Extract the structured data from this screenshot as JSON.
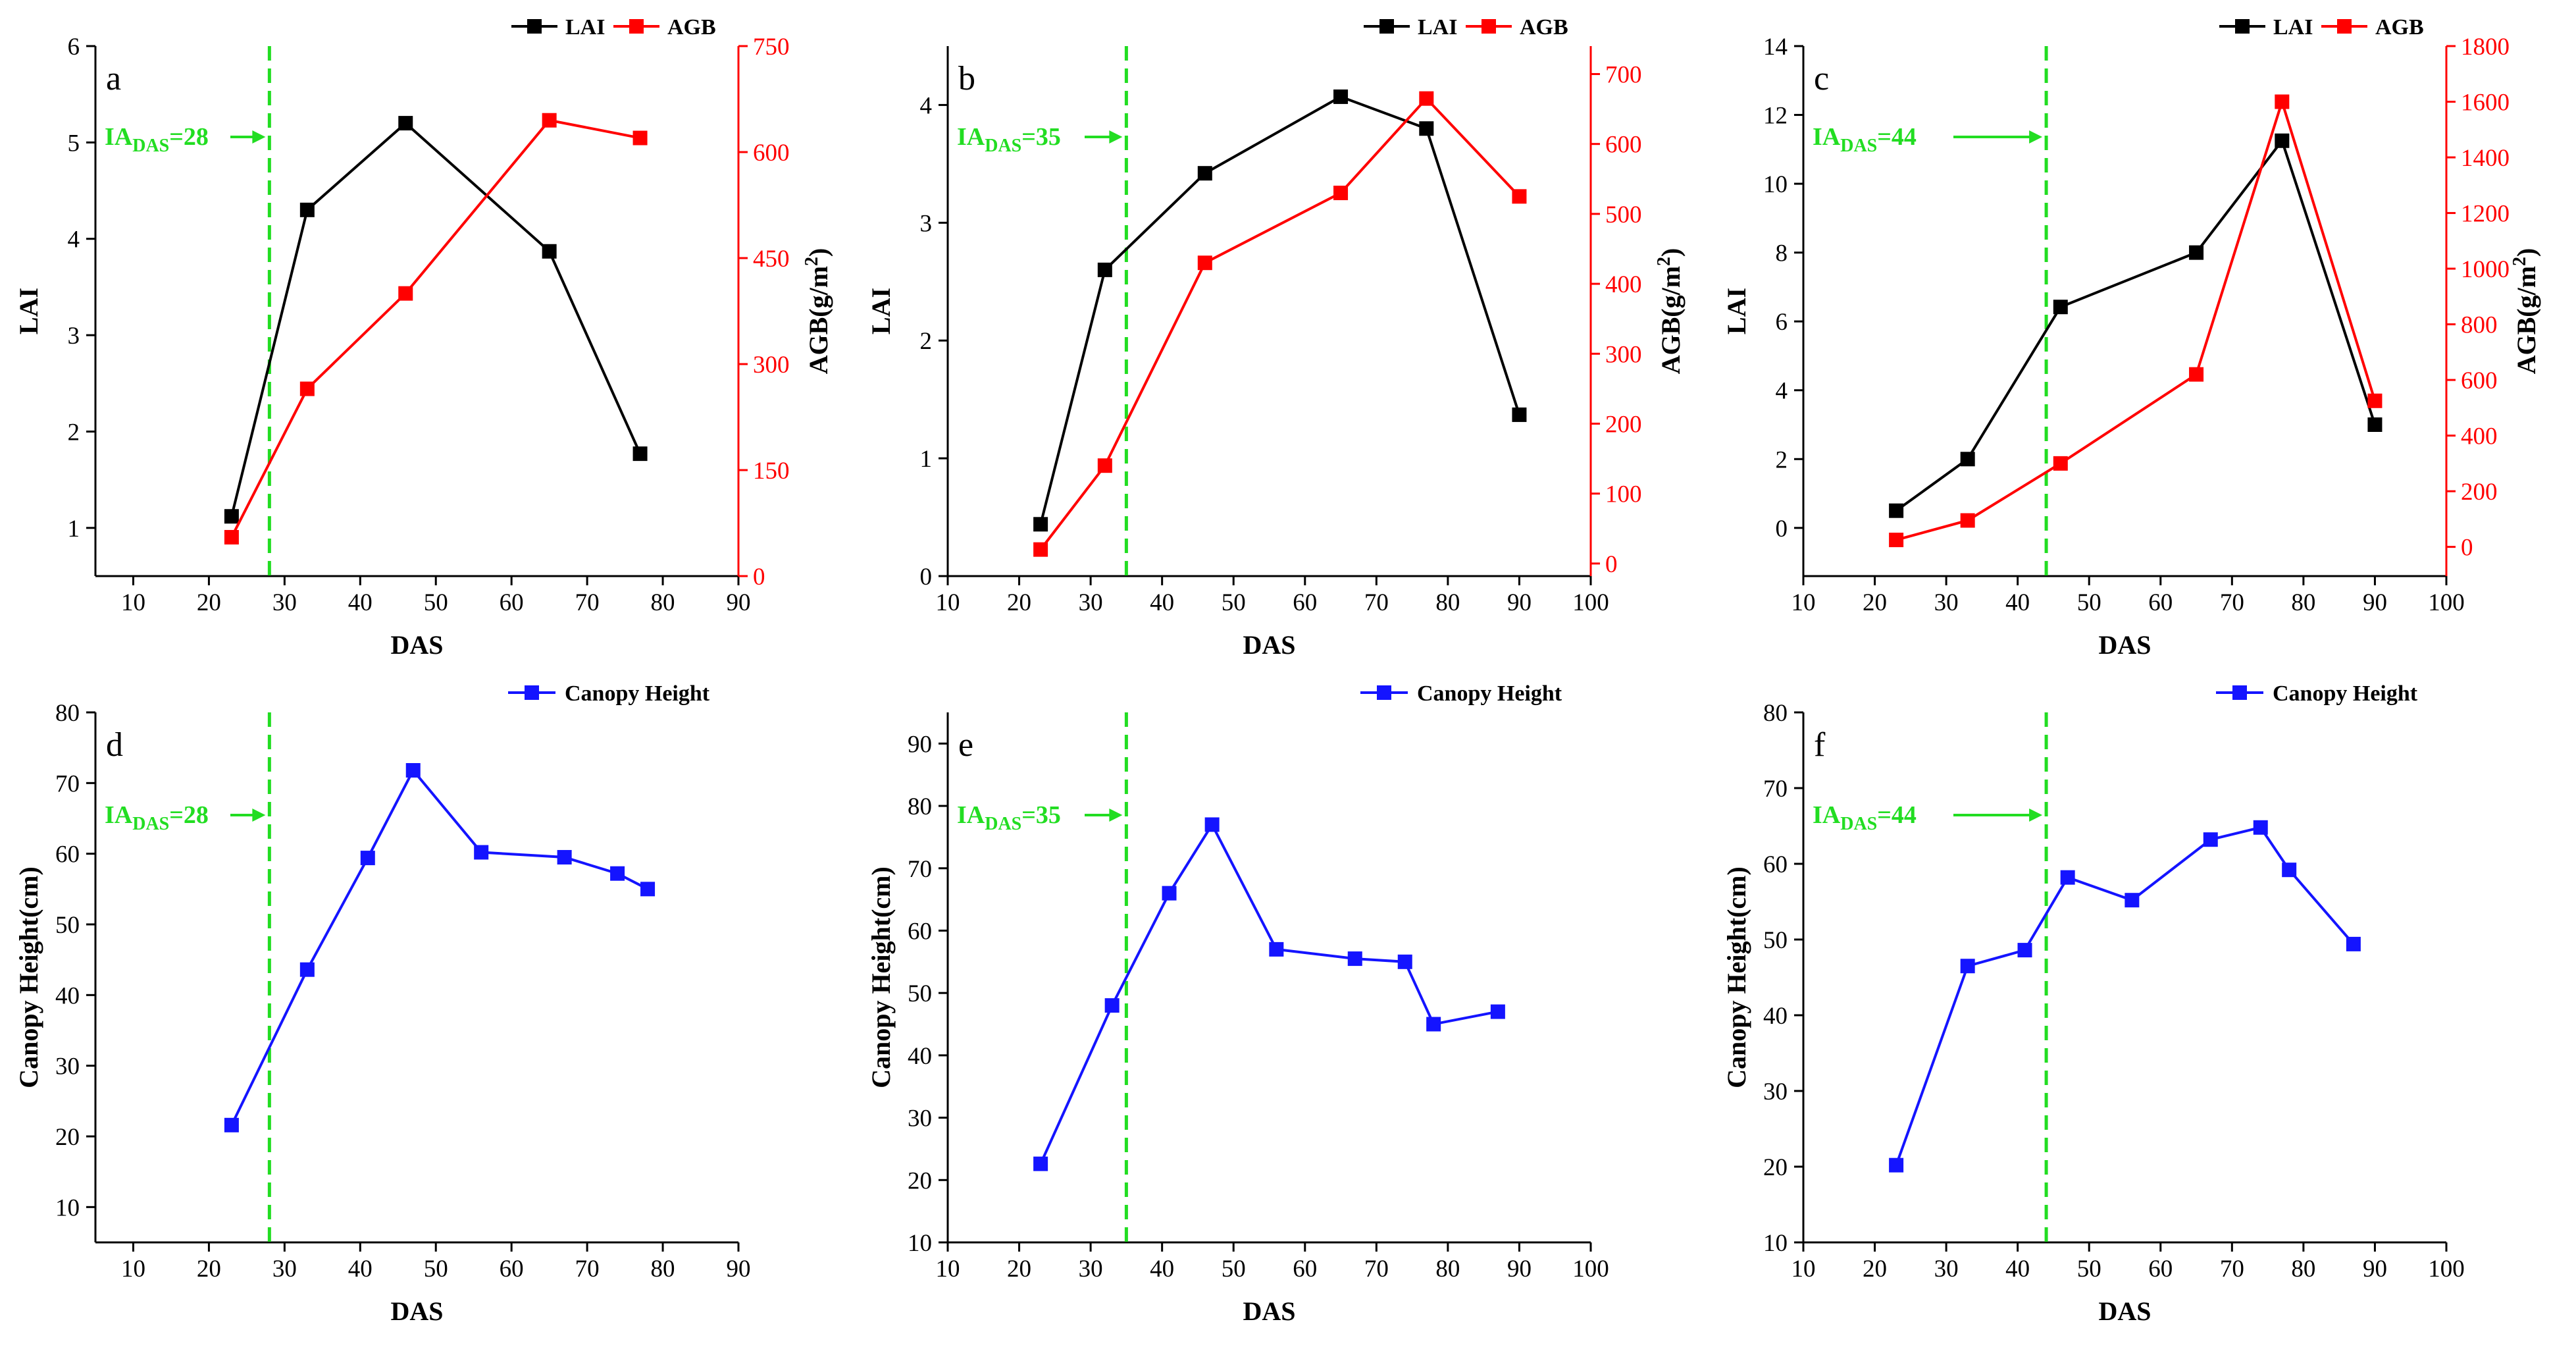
{
  "colors": {
    "lai": "#000000",
    "agb": "#ff0000",
    "canopy": "#1414ff",
    "ia_line": "#22dd22",
    "axis": "#000000",
    "background": "#ffffff"
  },
  "chart_data": [
    {
      "id": "a",
      "type": "line",
      "panel_letter": "a",
      "title": "",
      "xlabel": "DAS",
      "ylabel": "LAI",
      "y2label": "AGB(g/m2)",
      "xlim": [
        5,
        90
      ],
      "xticks": [
        10,
        20,
        30,
        40,
        50,
        60,
        70,
        80,
        90
      ],
      "ylim": [
        0.5,
        6
      ],
      "yticks": [
        1,
        2,
        3,
        4,
        5,
        6
      ],
      "y2lim": [
        0,
        750
      ],
      "y2ticks": [
        0,
        150,
        300,
        450,
        600,
        750
      ],
      "legend_position": "top-right",
      "grid": false,
      "series": [
        {
          "name": "LAI",
          "axis": "left",
          "color": "#000000",
          "x": [
            23,
            33,
            46,
            65,
            77
          ],
          "values": [
            1.12,
            4.3,
            5.2,
            3.87,
            1.77
          ]
        },
        {
          "name": "AGB",
          "axis": "right",
          "color": "#ff0000",
          "x": [
            23,
            33,
            46,
            65,
            77
          ],
          "values": [
            55,
            265,
            400,
            645,
            620
          ]
        }
      ],
      "annotation": {
        "x": 28,
        "label_main": "IA",
        "label_sub": "DAS",
        "label_value": "=28"
      }
    },
    {
      "id": "b",
      "type": "line",
      "panel_letter": "b",
      "title": "",
      "xlabel": "DAS",
      "ylabel": "LAI",
      "y2label": "AGB(g/m2)",
      "xlim": [
        10,
        100
      ],
      "xticks": [
        10,
        20,
        30,
        40,
        50,
        60,
        70,
        80,
        90,
        100
      ],
      "ylim": [
        0,
        4.5
      ],
      "yticks": [
        0,
        1,
        2,
        3,
        4
      ],
      "y2lim": [
        -18,
        740
      ],
      "y2ticks": [
        0,
        100,
        200,
        300,
        400,
        500,
        600,
        700
      ],
      "legend_position": "top-right",
      "grid": false,
      "series": [
        {
          "name": "LAI",
          "axis": "left",
          "color": "#000000",
          "x": [
            23,
            32,
            46,
            65,
            77,
            90
          ],
          "values": [
            0.44,
            2.6,
            3.42,
            4.07,
            3.8,
            1.37
          ]
        },
        {
          "name": "AGB",
          "axis": "right",
          "color": "#ff0000",
          "x": [
            23,
            32,
            46,
            65,
            77,
            90
          ],
          "values": [
            20,
            140,
            430,
            530,
            665,
            525
          ]
        }
      ],
      "annotation": {
        "x": 35,
        "label_main": "IA",
        "label_sub": "DAS",
        "label_value": "=35"
      }
    },
    {
      "id": "c",
      "type": "line",
      "panel_letter": "c",
      "title": "",
      "xlabel": "DAS",
      "ylabel": "LAI",
      "y2label": "AGB(g/m2)",
      "xlim": [
        10,
        100
      ],
      "xticks": [
        10,
        20,
        30,
        40,
        50,
        60,
        70,
        80,
        90,
        100
      ],
      "ylim": [
        -1.4,
        14
      ],
      "yticks": [
        0,
        2,
        4,
        6,
        8,
        10,
        12,
        14
      ],
      "y2lim": [
        -105,
        1800
      ],
      "y2ticks": [
        0,
        200,
        400,
        600,
        800,
        1000,
        1200,
        1400,
        1600,
        1800
      ],
      "legend_position": "top-right",
      "grid": false,
      "series": [
        {
          "name": "LAI",
          "axis": "left",
          "color": "#000000",
          "x": [
            23,
            33,
            46,
            65,
            77,
            90
          ],
          "values": [
            0.5,
            2.0,
            6.42,
            8.0,
            11.25,
            3.0
          ]
        },
        {
          "name": "AGB",
          "axis": "right",
          "color": "#ff0000",
          "x": [
            23,
            33,
            46,
            65,
            77,
            90
          ],
          "values": [
            25,
            95,
            300,
            620,
            1600,
            525
          ]
        }
      ],
      "annotation": {
        "x": 44,
        "label_main": "IA",
        "label_sub": "DAS",
        "label_value": "=44"
      }
    },
    {
      "id": "d",
      "type": "line",
      "panel_letter": "d",
      "title": "",
      "xlabel": "DAS",
      "ylabel": "Canopy Height(cm)",
      "xlim": [
        5,
        90
      ],
      "xticks": [
        10,
        20,
        30,
        40,
        50,
        60,
        70,
        80,
        90
      ],
      "ylim": [
        5,
        80
      ],
      "yticks": [
        10,
        20,
        30,
        40,
        50,
        60,
        70,
        80
      ],
      "legend_position": "top-right",
      "grid": false,
      "series": [
        {
          "name": "Canopy Height",
          "axis": "left",
          "color": "#1414ff",
          "x": [
            23,
            33,
            41,
            47,
            56,
            67,
            74,
            78
          ],
          "values": [
            21.6,
            43.6,
            59.4,
            71.8,
            60.2,
            59.5,
            57.2,
            55.0
          ]
        }
      ],
      "annotation": {
        "x": 28,
        "label_main": "IA",
        "label_sub": "DAS",
        "label_value": "=28"
      }
    },
    {
      "id": "e",
      "type": "line",
      "panel_letter": "e",
      "title": "",
      "xlabel": "DAS",
      "ylabel": "Canopy Height(cm)",
      "xlim": [
        10,
        100
      ],
      "xticks": [
        10,
        20,
        30,
        40,
        50,
        60,
        70,
        80,
        90,
        100
      ],
      "ylim": [
        10,
        95
      ],
      "yticks": [
        10,
        20,
        30,
        40,
        50,
        60,
        70,
        80,
        90
      ],
      "legend_position": "top-right",
      "grid": false,
      "series": [
        {
          "name": "Canopy Height",
          "axis": "left",
          "color": "#1414ff",
          "x": [
            23,
            33,
            41,
            47,
            56,
            67,
            74,
            78,
            87
          ],
          "values": [
            22.6,
            48.0,
            66.0,
            77.0,
            57.0,
            55.5,
            55.0,
            45.0,
            47.0
          ]
        }
      ],
      "annotation": {
        "x": 35,
        "label_main": "IA",
        "label_sub": "DAS",
        "label_value": "=35"
      }
    },
    {
      "id": "f",
      "type": "line",
      "panel_letter": "f",
      "title": "",
      "xlabel": "DAS",
      "ylabel": "Canopy Height(cm)",
      "xlim": [
        10,
        100
      ],
      "xticks": [
        10,
        20,
        30,
        40,
        50,
        60,
        70,
        80,
        90,
        100
      ],
      "ylim": [
        10,
        80
      ],
      "yticks": [
        10,
        20,
        30,
        40,
        50,
        60,
        70,
        80
      ],
      "legend_position": "top-right",
      "grid": false,
      "series": [
        {
          "name": "Canopy Height",
          "axis": "left",
          "color": "#1414ff",
          "x": [
            23,
            33,
            41,
            47,
            56,
            67,
            74,
            78,
            87
          ],
          "values": [
            20.2,
            46.5,
            48.6,
            58.2,
            55.2,
            63.2,
            64.8,
            59.2,
            49.4
          ]
        }
      ],
      "annotation": {
        "x": 44,
        "label_main": "IA",
        "label_sub": "DAS",
        "label_value": "=44"
      }
    }
  ]
}
